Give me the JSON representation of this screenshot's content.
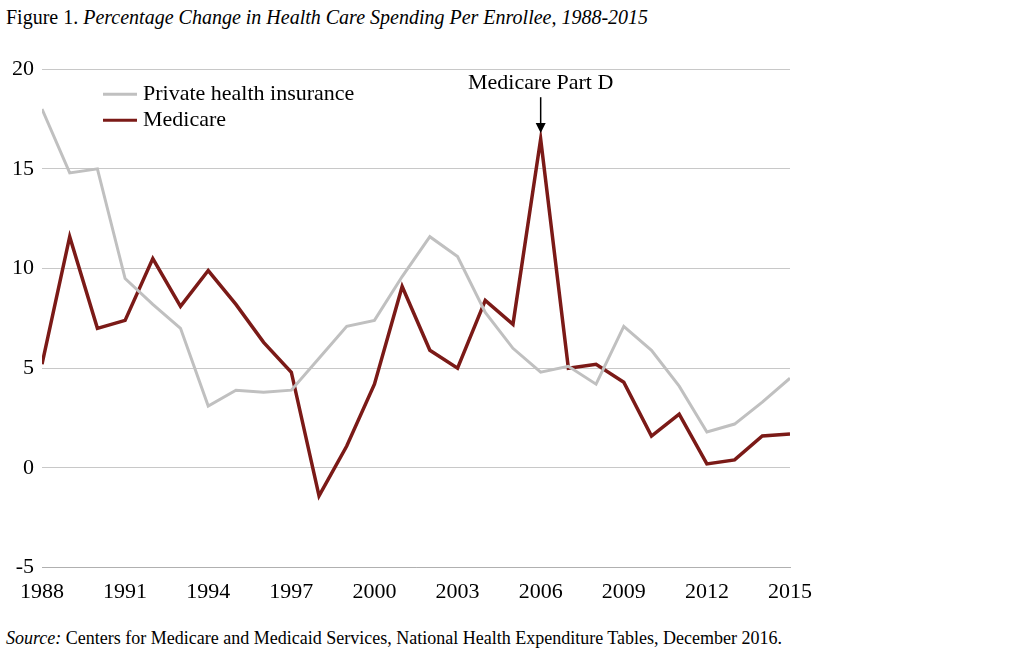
{
  "chart_data": {
    "type": "line",
    "title": "Figure 1. Percentage Change in Health Care Spending Per Enrollee, 1988-2015",
    "source": "Source: Centers for Medicare and Medicaid Services, National Health Expenditure Tables, December 2016.",
    "x": [
      1988,
      1989,
      1990,
      1991,
      1992,
      1993,
      1994,
      1995,
      1996,
      1997,
      1998,
      1999,
      2000,
      2001,
      2002,
      2003,
      2004,
      2005,
      2006,
      2007,
      2008,
      2009,
      2010,
      2011,
      2012,
      2013,
      2014,
      2015
    ],
    "series": [
      {
        "name": "Private health insurance",
        "color": "#c0c0c0",
        "values": [
          18.0,
          14.8,
          15.0,
          9.5,
          8.2,
          7.0,
          3.1,
          3.9,
          3.8,
          3.9,
          5.5,
          7.1,
          7.4,
          9.6,
          11.6,
          10.6,
          7.8,
          6.0,
          4.8,
          5.1,
          4.2,
          7.1,
          5.9,
          4.1,
          1.8,
          2.2,
          3.3,
          4.5
        ]
      },
      {
        "name": "Medicare",
        "color": "#7b1a17",
        "values": [
          5.2,
          11.6,
          7.0,
          7.4,
          10.5,
          8.1,
          9.9,
          8.2,
          6.3,
          4.8,
          -1.4,
          1.1,
          4.2,
          9.1,
          5.9,
          5.0,
          8.4,
          7.2,
          16.5,
          5.0,
          5.2,
          4.3,
          1.6,
          2.7,
          0.2,
          0.4,
          1.6,
          1.7
        ]
      }
    ],
    "xlim": [
      1988,
      2015
    ],
    "xticks": [
      1988,
      1991,
      1994,
      1997,
      2000,
      2003,
      2006,
      2009,
      2012,
      2015
    ],
    "ylim": [
      -5,
      20
    ],
    "yticks": [
      -5,
      0,
      5,
      10,
      15,
      20
    ],
    "grid": true,
    "legend": "upper left",
    "annotations": [
      {
        "text": "Medicare Part D",
        "x": 2006
      }
    ]
  }
}
